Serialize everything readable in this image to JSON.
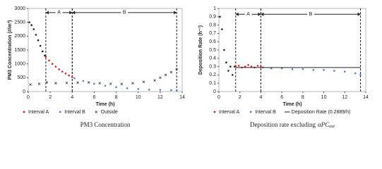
{
  "chart_data": [
    {
      "type": "scatter",
      "caption": "PM3 Concentration",
      "y_label": "PM3 Concentration (#/m³)",
      "x_label": "Time (h)",
      "xlim": [
        0,
        14
      ],
      "xticks": [
        0,
        2,
        4,
        6,
        8,
        10,
        12,
        14
      ],
      "ylim": [
        0,
        3000
      ],
      "yticks": [
        0,
        500,
        1000,
        1500,
        2000,
        2500,
        3000
      ],
      "intervals": [
        {
          "label": "A",
          "start": 1.6,
          "end": 4
        },
        {
          "label": "B",
          "start": 4,
          "end": 13.5
        }
      ],
      "interval_arrow_y": 2850,
      "series": [
        {
          "color": "#222222",
          "marker": "dot",
          "x": [
            0.1,
            0.3,
            0.5,
            0.7,
            0.9,
            1.1,
            1.3,
            1.5
          ],
          "values": [
            2500,
            2400,
            2250,
            2050,
            1850,
            1650,
            1450,
            1300
          ]
        },
        {
          "name": "Interval A",
          "color": "#d62020",
          "marker": "dot",
          "x": [
            1.6,
            1.9,
            2.2,
            2.5,
            2.8,
            3.1,
            3.4,
            3.7,
            4.0
          ],
          "values": [
            1250,
            1120,
            1000,
            900,
            800,
            720,
            650,
            580,
            520
          ]
        },
        {
          "name": "Interval B",
          "color": "#4a7fd4",
          "marker": "dot",
          "x": [
            4.2,
            5,
            6,
            7,
            8,
            9,
            10,
            11,
            12,
            13,
            13.5
          ],
          "values": [
            480,
            380,
            280,
            210,
            160,
            120,
            90,
            70,
            60,
            50,
            45
          ]
        },
        {
          "name": "Outside",
          "color": "#222222",
          "marker": "cross",
          "x": [
            0.2,
            1,
            1.7,
            2.5,
            3.5,
            4.5,
            5.5,
            6.5,
            7.5,
            8.5,
            9.5,
            10.5,
            11.5,
            12,
            12.5,
            13,
            13.5
          ],
          "values": [
            250,
            280,
            330,
            300,
            310,
            320,
            330,
            300,
            280,
            270,
            300,
            350,
            400,
            500,
            600,
            700,
            800
          ]
        }
      ]
    },
    {
      "type": "scatter",
      "caption": "Deposition rate excluding",
      "caption_math": "αPC",
      "caption_sub": "out",
      "y_label": "Deposition Rate (h⁻¹)",
      "x_label": "Time (h)",
      "xlim": [
        0,
        14
      ],
      "xticks": [
        0,
        2,
        4,
        6,
        8,
        10,
        12,
        14
      ],
      "ylim": [
        0,
        1
      ],
      "yticks": [
        0,
        0.1,
        0.2,
        0.3,
        0.4,
        0.5,
        0.6,
        0.7,
        0.8,
        0.9,
        1
      ],
      "intervals": [
        {
          "label": "A",
          "start": 1.6,
          "end": 4
        },
        {
          "label": "B",
          "start": 4,
          "end": 13.5
        }
      ],
      "interval_arrow_y": 0.93,
      "series": [
        {
          "color": "#222222",
          "marker": "dot",
          "x": [
            0.1,
            0.3,
            0.5,
            0.7,
            0.9,
            1.1,
            1.3,
            1.5
          ],
          "values": [
            0.9,
            0.75,
            0.5,
            0.35,
            0.25,
            0.3,
            0.2,
            0.3
          ]
        },
        {
          "name": "Interval A",
          "color": "#d62020",
          "marker": "dot",
          "x": [
            1.6,
            1.9,
            2.2,
            2.5,
            2.8,
            3.1,
            3.4,
            3.7,
            4.0
          ],
          "values": [
            0.3,
            0.31,
            0.29,
            0.3,
            0.32,
            0.3,
            0.29,
            0.31,
            0.3
          ]
        },
        {
          "name": "Interval B",
          "color": "#4a7fd4",
          "marker": "dot",
          "x": [
            4.2,
            5,
            6,
            7,
            8,
            9,
            10,
            11,
            12,
            13,
            13.5
          ],
          "values": [
            0.29,
            0.28,
            0.28,
            0.27,
            0.27,
            0.26,
            0.26,
            0.25,
            0.24,
            0.22,
            0.2
          ]
        },
        {
          "name": "Deposition Rate (0.2889/h)",
          "color": "#222222",
          "marker": "line",
          "x": [
            1.6,
            13.5
          ],
          "values": [
            0.2889,
            0.2889
          ]
        }
      ]
    }
  ]
}
